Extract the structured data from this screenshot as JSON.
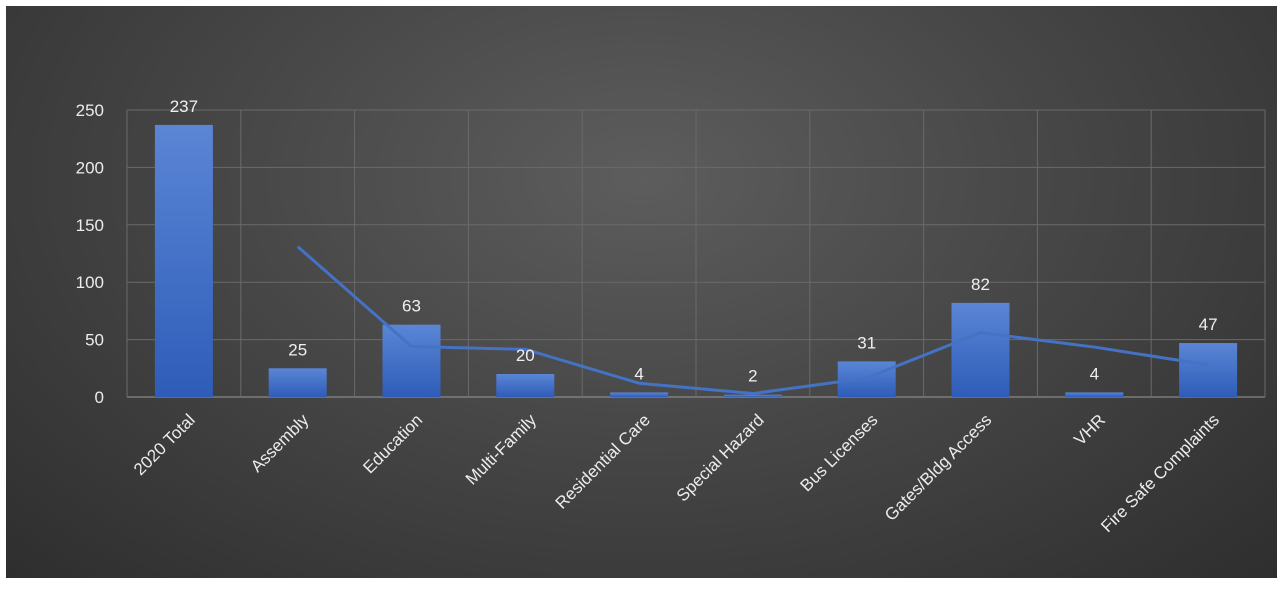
{
  "chart_data": {
    "type": "bar",
    "categories": [
      "2020 Total",
      "Assembly",
      "Education",
      "Multi-Family",
      "Residential Care",
      "Special Hazard",
      "Bus Licenses",
      "Gates/Bldg Access",
      "VHR",
      "Fire Safe Complaints"
    ],
    "values": [
      237,
      25,
      63,
      20,
      4,
      2,
      31,
      82,
      4,
      47
    ],
    "data_labels": [
      "237",
      "25",
      "63",
      "20",
      "4",
      "2",
      "31",
      "82",
      "4",
      "47"
    ],
    "trendline": {
      "type": "line",
      "x": [
        "Assembly",
        "Education",
        "Multi-Family",
        "Residential Care",
        "Special Hazard",
        "Bus Licenses",
        "Gates/Bldg Access",
        "VHR",
        "Fire Safe Complaints"
      ],
      "values": [
        131,
        44,
        41.5,
        12,
        3,
        16.5,
        56,
        43.5,
        28
      ]
    },
    "title": "",
    "xlabel": "",
    "ylabel": "",
    "ylim": [
      0,
      250
    ],
    "yticks": [
      "0",
      "50",
      "100",
      "150",
      "200",
      "250"
    ],
    "grid": true,
    "legend": "none",
    "colors": {
      "bar_top": "#5b86d6",
      "bar_bottom": "#2e5cb8",
      "line": "#4472c4",
      "grid": "#6a6a6a",
      "text": "#ececec"
    }
  }
}
